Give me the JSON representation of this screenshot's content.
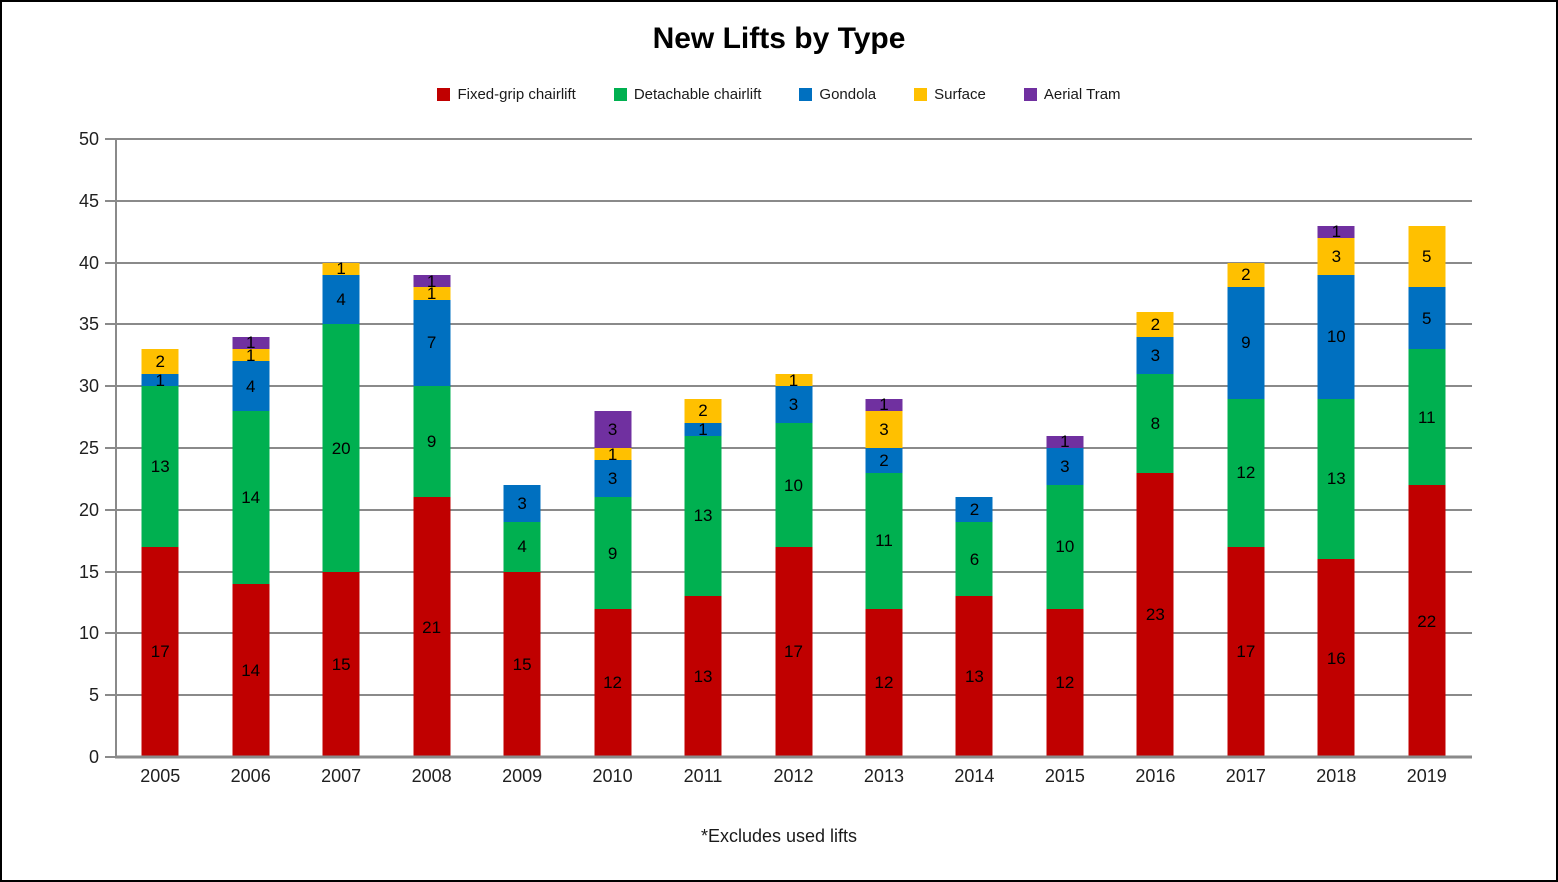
{
  "page": {
    "title": "New Lifts by Type",
    "footnote": "*Excludes used lifts"
  },
  "chart_data": {
    "type": "bar",
    "stacked": true,
    "title": "New Lifts by Type",
    "xlabel": "",
    "ylabel": "",
    "ylim": [
      0,
      50
    ],
    "y_ticks": [
      0,
      5,
      10,
      15,
      20,
      25,
      30,
      35,
      40,
      45,
      50
    ],
    "grid": true,
    "grid_color": "#8A8A8A",
    "legend_position": "top",
    "data_labels": "centered in each segment, zero values unlabeled",
    "categories": [
      "2005",
      "2006",
      "2007",
      "2008",
      "2009",
      "2010",
      "2011",
      "2012",
      "2013",
      "2014",
      "2015",
      "2016",
      "2017",
      "2018",
      "2019"
    ],
    "series": [
      {
        "name": "Fixed-grip chairlift",
        "color": "#C00000",
        "values": [
          17,
          14,
          15,
          21,
          15,
          12,
          13,
          17,
          12,
          13,
          12,
          23,
          17,
          16,
          22
        ]
      },
      {
        "name": "Detachable chairlift",
        "color": "#00B050",
        "values": [
          13,
          14,
          20,
          9,
          4,
          9,
          13,
          10,
          11,
          6,
          10,
          8,
          12,
          13,
          11
        ]
      },
      {
        "name": "Gondola",
        "color": "#0070C0",
        "values": [
          1,
          4,
          4,
          7,
          3,
          3,
          1,
          3,
          2,
          2,
          3,
          3,
          9,
          10,
          5
        ]
      },
      {
        "name": "Surface",
        "color": "#FFC000",
        "values": [
          2,
          1,
          1,
          1,
          0,
          1,
          2,
          1,
          3,
          0,
          0,
          2,
          2,
          3,
          5
        ]
      },
      {
        "name": "Aerial Tram",
        "color": "#7030A0",
        "values": [
          0,
          1,
          0,
          1,
          0,
          3,
          0,
          0,
          1,
          0,
          1,
          0,
          0,
          1,
          0
        ]
      }
    ],
    "totals": [
      33,
      34,
      40,
      39,
      22,
      28,
      29,
      31,
      29,
      21,
      26,
      36,
      40,
      43,
      43
    ]
  }
}
